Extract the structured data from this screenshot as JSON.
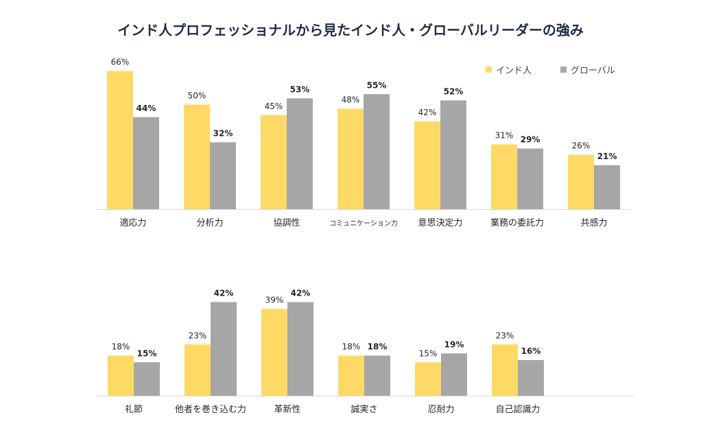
{
  "title": "インド人プロフェッショナルから見たインド人・グローバルリーダーの強み",
  "colors": {
    "india": "#FFD966",
    "global": "#A6A6A6",
    "axis": "#D9D9D9",
    "text": "#262626"
  },
  "legend": {
    "india": "インド人",
    "global": "グローバル"
  },
  "chart_data": [
    {
      "type": "bar",
      "categories": [
        "適応力",
        "分析力",
        "協調性",
        "コミュニケーション力",
        "意思決定力",
        "業務の委託力",
        "共感力"
      ],
      "series": [
        {
          "name": "インド人",
          "values": [
            66,
            50,
            45,
            48,
            42,
            31,
            26
          ]
        },
        {
          "name": "グローバル",
          "values": [
            44,
            32,
            53,
            55,
            52,
            29,
            21
          ]
        }
      ],
      "ylim": [
        0,
        70
      ],
      "value_suffix": "%"
    },
    {
      "type": "bar",
      "categories": [
        "礼節",
        "他者を巻き込む力",
        "革新性",
        "誠実さ",
        "忍耐力",
        "自己認識力"
      ],
      "series": [
        {
          "name": "インド人",
          "values": [
            18,
            23,
            39,
            18,
            15,
            23
          ]
        },
        {
          "name": "グローバル",
          "values": [
            15,
            42,
            42,
            18,
            19,
            16
          ]
        }
      ],
      "ylim": [
        0,
        70
      ],
      "value_suffix": "%"
    }
  ]
}
